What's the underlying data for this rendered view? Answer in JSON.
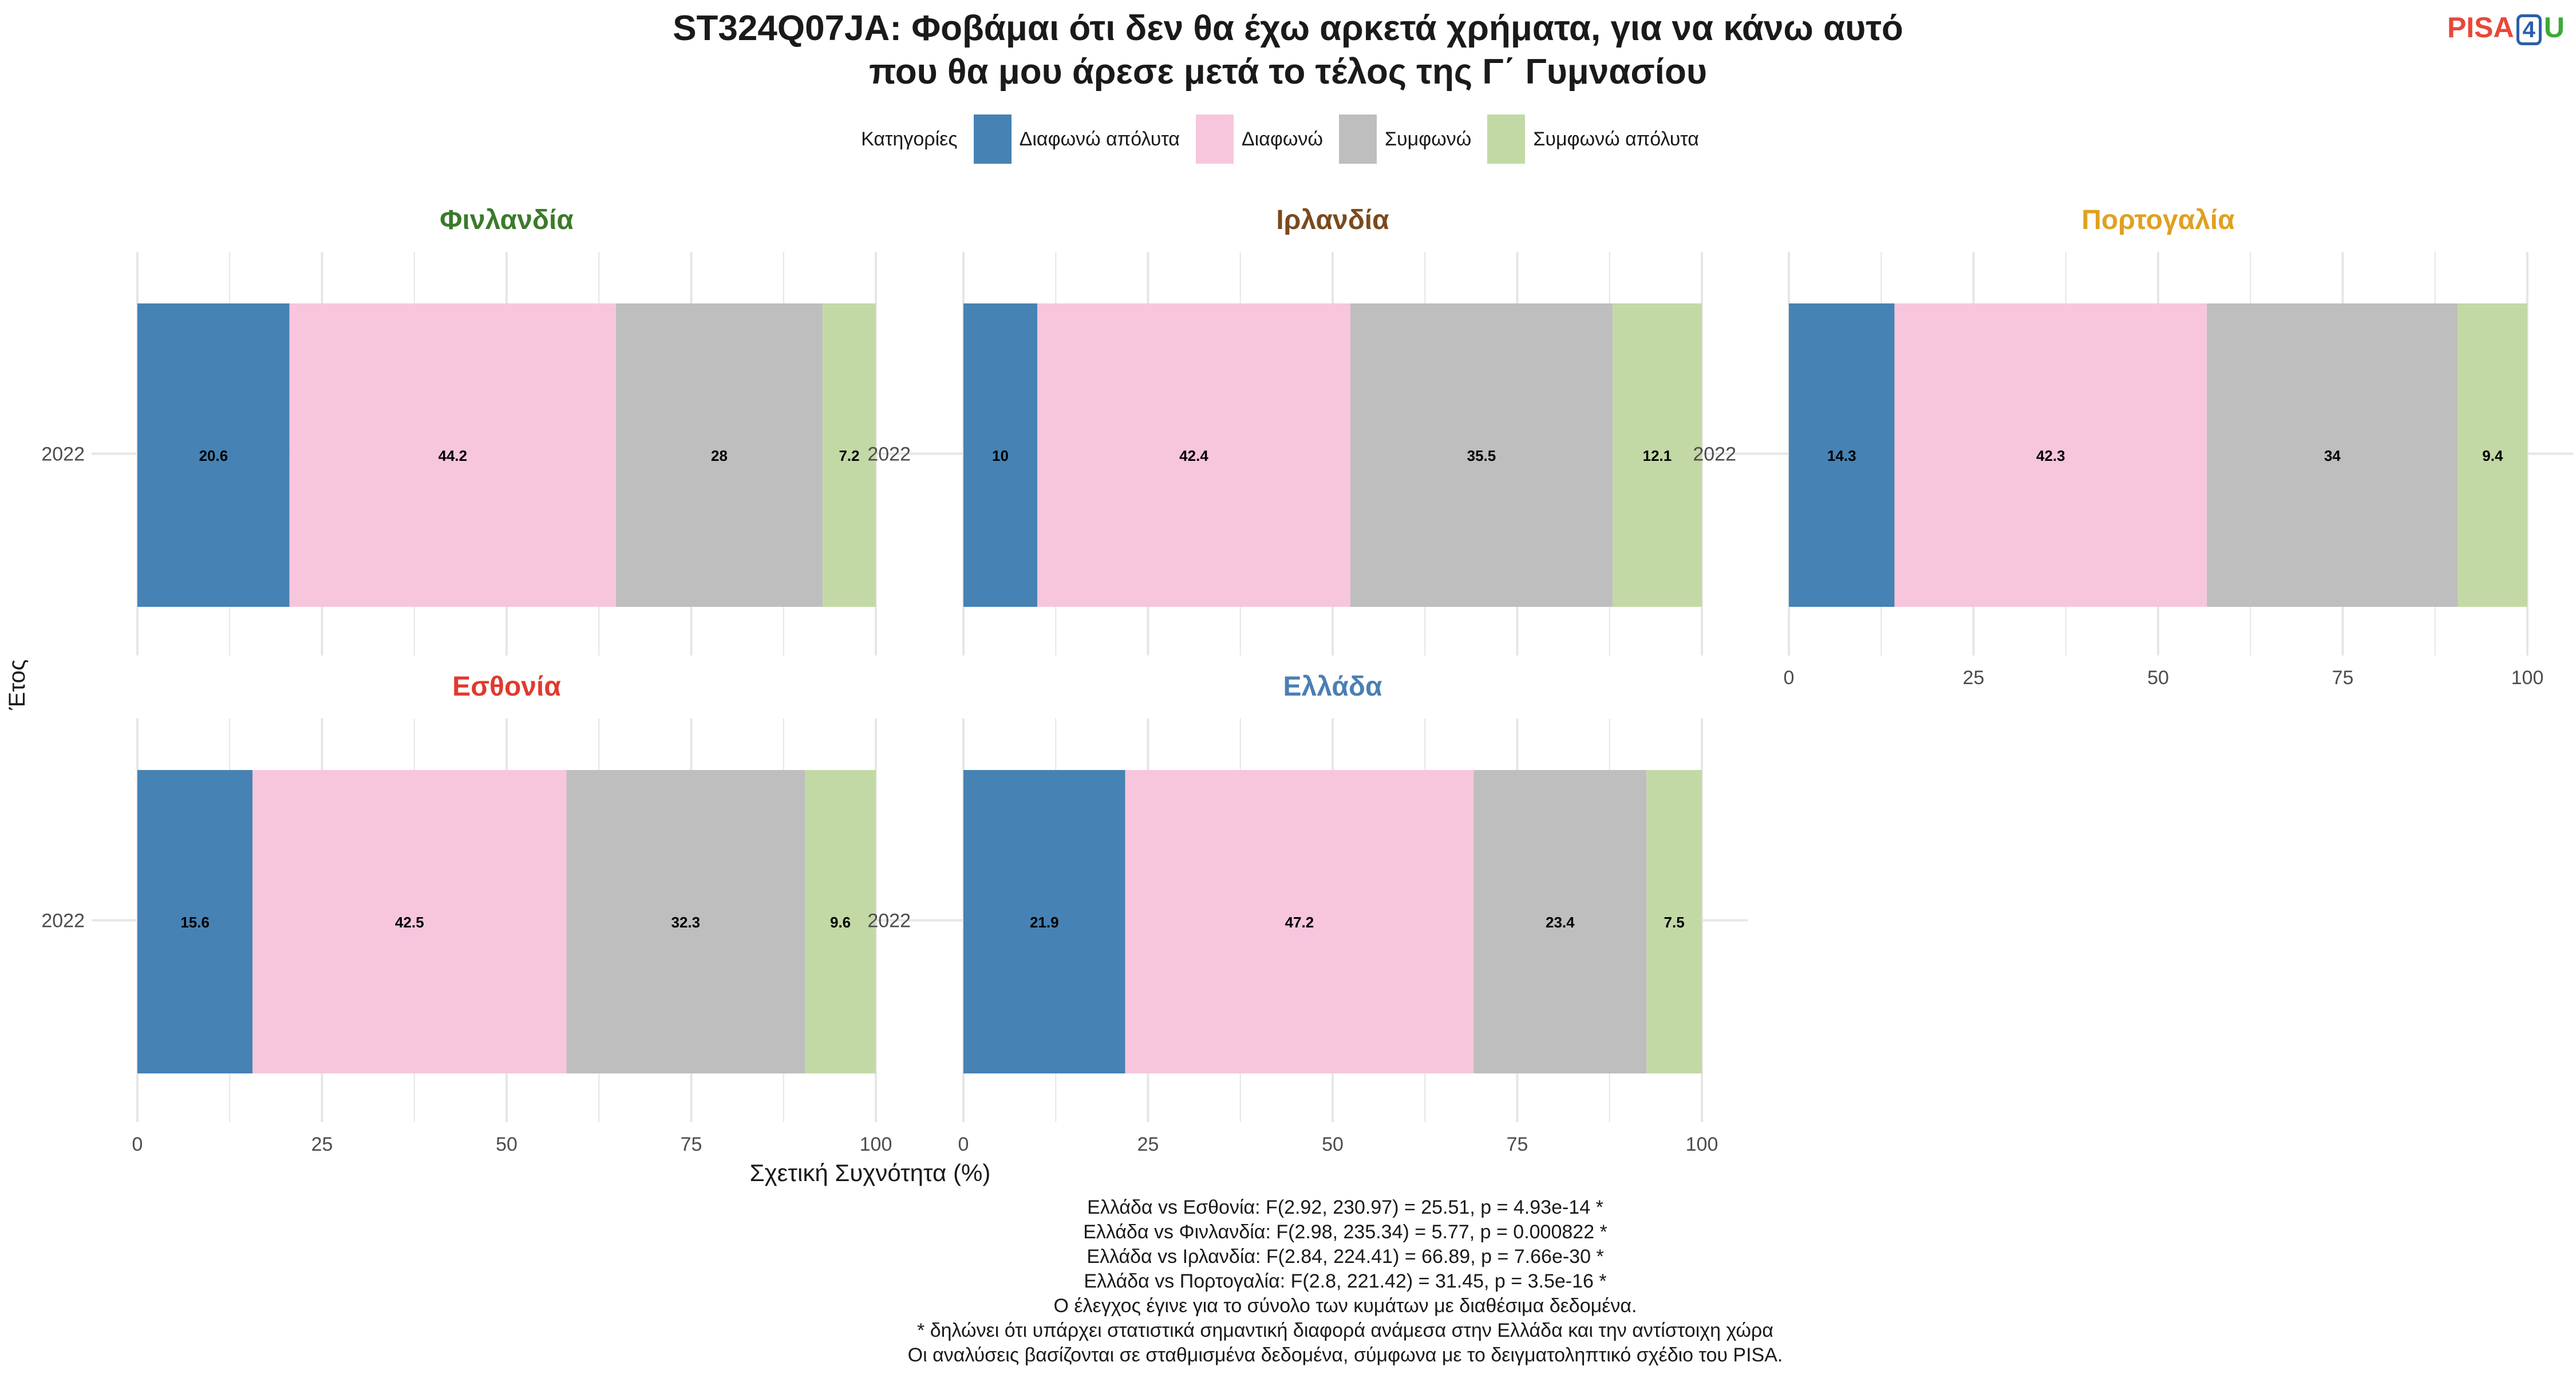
{
  "title_lines": [
    "ST324Q07JA: Φοβάμαι ότι δεν θα έχω αρκετά χρήματα, για να κάνω αυτό",
    "που θα μου άρεσε μετά το τέλος της Γ΄ Γυμνασίου"
  ],
  "logo": {
    "pisa": "PISA",
    "four": "4",
    "u": "U"
  },
  "legend": {
    "title": "Κατηγορίες",
    "items": [
      {
        "label": "Διαφωνώ απόλυτα",
        "color": "#4682b4"
      },
      {
        "label": "Διαφωνώ",
        "color": "#f7c6dc"
      },
      {
        "label": "Συμφωνώ",
        "color": "#bebebe"
      },
      {
        "label": "Συμφωνώ απόλυτα",
        "color": "#c3d9a5"
      }
    ]
  },
  "ylabel": "Έτος",
  "xlabel": "Σχετική Συχνότητα (%)",
  "caption_lines": [
    "Ελλάδα vs Εσθονία: F(2.92, 230.97) = 25.51, p = 4.93e-14 *",
    "Ελλάδα vs Φινλανδία: F(2.98, 235.34) = 5.77, p = 0.000822 *",
    "Ελλάδα vs Ιρλανδία: F(2.84, 224.41) = 66.89, p = 7.66e-30 *",
    "Ελλάδα vs Πορτογαλία: F(2.8, 221.42) = 31.45, p = 3.5e-16 *",
    "Ο έλεγχος έγινε για το σύνολο των κυμάτων με διαθέσιμα δεδομένα.",
    "* δηλώνει ότι υπάρχει στατιστικά σημαντική διαφορά ανάμεσα στην Ελλάδα και την αντίστοιχη χώρα",
    "Οι αναλύσεις βασίζονται σε σταθμισμένα δεδομένα, σύμφωνα με το δειγματοληπτικό σχέδιο του PISA."
  ],
  "chart_data": {
    "type": "bar",
    "orientation": "horizontal",
    "stacked": true,
    "xlim": [
      0,
      100
    ],
    "xticks": [
      0,
      25,
      50,
      75,
      100
    ],
    "grid": true,
    "legend_position": "top",
    "panels": [
      {
        "name": "Φινλανδία",
        "name_color": "#3b7a2a",
        "category": "2022",
        "values": [
          20.6,
          44.2,
          28,
          7.2
        ],
        "labels": [
          "20.6",
          "44.2",
          "28",
          "7.2"
        ]
      },
      {
        "name": "Ιρλανδία",
        "name_color": "#7a4a1e",
        "category": "2022",
        "values": [
          10,
          42.4,
          35.5,
          12.1
        ],
        "labels": [
          "10",
          "42.4",
          "35.5",
          "12.1"
        ]
      },
      {
        "name": "Πορτογαλία",
        "name_color": "#e0a020",
        "category": "2022",
        "values": [
          14.3,
          42.3,
          34,
          9.4
        ],
        "labels": [
          "14.3",
          "42.3",
          "34",
          "9.4"
        ]
      },
      {
        "name": "Εσθονία",
        "name_color": "#e03a2e",
        "category": "2022",
        "values": [
          15.6,
          42.5,
          32.3,
          9.6
        ],
        "labels": [
          "15.6",
          "42.5",
          "32.3",
          "9.6"
        ]
      },
      {
        "name": "Ελλάδα",
        "name_color": "#4a7fb5",
        "category": "2022",
        "values": [
          21.9,
          47.2,
          23.4,
          7.5
        ],
        "labels": [
          "21.9",
          "47.2",
          "23.4",
          "7.5"
        ]
      }
    ]
  }
}
